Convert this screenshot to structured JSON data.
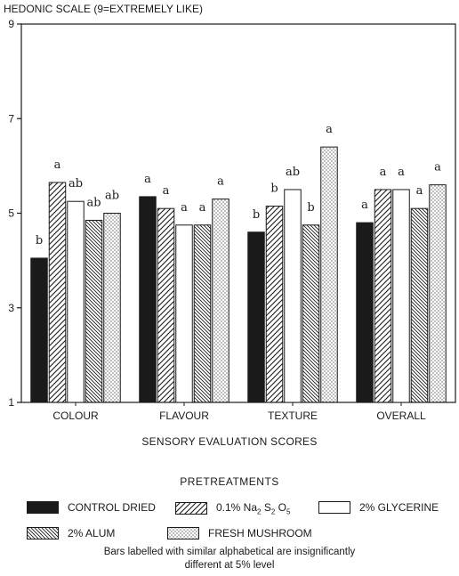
{
  "chart_data": {
    "type": "bar",
    "ylabel": "HEDONIC SCALE (9=EXTREMELY LIKE)",
    "xlabel": "SENSORY EVALUATION SCORES",
    "ylim": [
      1,
      9
    ],
    "yticks": [
      "1",
      "3",
      "5",
      "7",
      "9"
    ],
    "grid": false,
    "categories": [
      "COLOUR",
      "FLAVOUR",
      "TEXTURE",
      "OVERALL"
    ],
    "series": [
      {
        "name": "CONTROL DRIED",
        "pattern": "solid",
        "values": [
          4.05,
          5.35,
          4.6,
          4.8
        ],
        "labels": [
          "b",
          "a",
          "b",
          "a"
        ]
      },
      {
        "name": "0.1% Na2S2O5",
        "pattern": "diagonal",
        "values": [
          5.65,
          5.1,
          5.15,
          5.5
        ],
        "labels": [
          "a",
          "a",
          "b",
          "a"
        ]
      },
      {
        "name": "2% GLYCERINE",
        "pattern": "blank",
        "values": [
          5.25,
          4.75,
          5.5,
          5.5
        ],
        "labels": [
          "ab",
          "a",
          "ab",
          "a"
        ]
      },
      {
        "name": "2% ALUM",
        "pattern": "crosshatch",
        "values": [
          4.85,
          4.75,
          4.75,
          5.1
        ],
        "labels": [
          "ab",
          "a",
          "b",
          "a"
        ]
      },
      {
        "name": "FRESH MUSHROOM",
        "pattern": "dotted",
        "values": [
          5.0,
          5.3,
          6.4,
          5.6
        ],
        "labels": [
          "ab",
          "a",
          "a",
          "a"
        ]
      }
    ]
  },
  "legend": {
    "title": "PRETREATMENTS",
    "items": [
      {
        "label": "CONTROL DRIED",
        "pattern": "solid"
      },
      {
        "label_main": "0.1% Na",
        "sub1": "2",
        "label_mid": " S",
        "sub2": "2",
        "label_end": " O",
        "sub3": "5",
        "pattern": "diagonal"
      },
      {
        "label": "2% GLYCERINE",
        "pattern": "blank"
      },
      {
        "label": "2% ALUM",
        "pattern": "crosshatch"
      },
      {
        "label": "FRESH MUSHROOM",
        "pattern": "dotted"
      }
    ]
  },
  "footnote": {
    "line1": "Bars labelled with similar alphabetical are insignificantly",
    "line2": "different at 5% level"
  },
  "colors": {
    "ink": "#1a1a1a",
    "paper": "#ffffff"
  }
}
